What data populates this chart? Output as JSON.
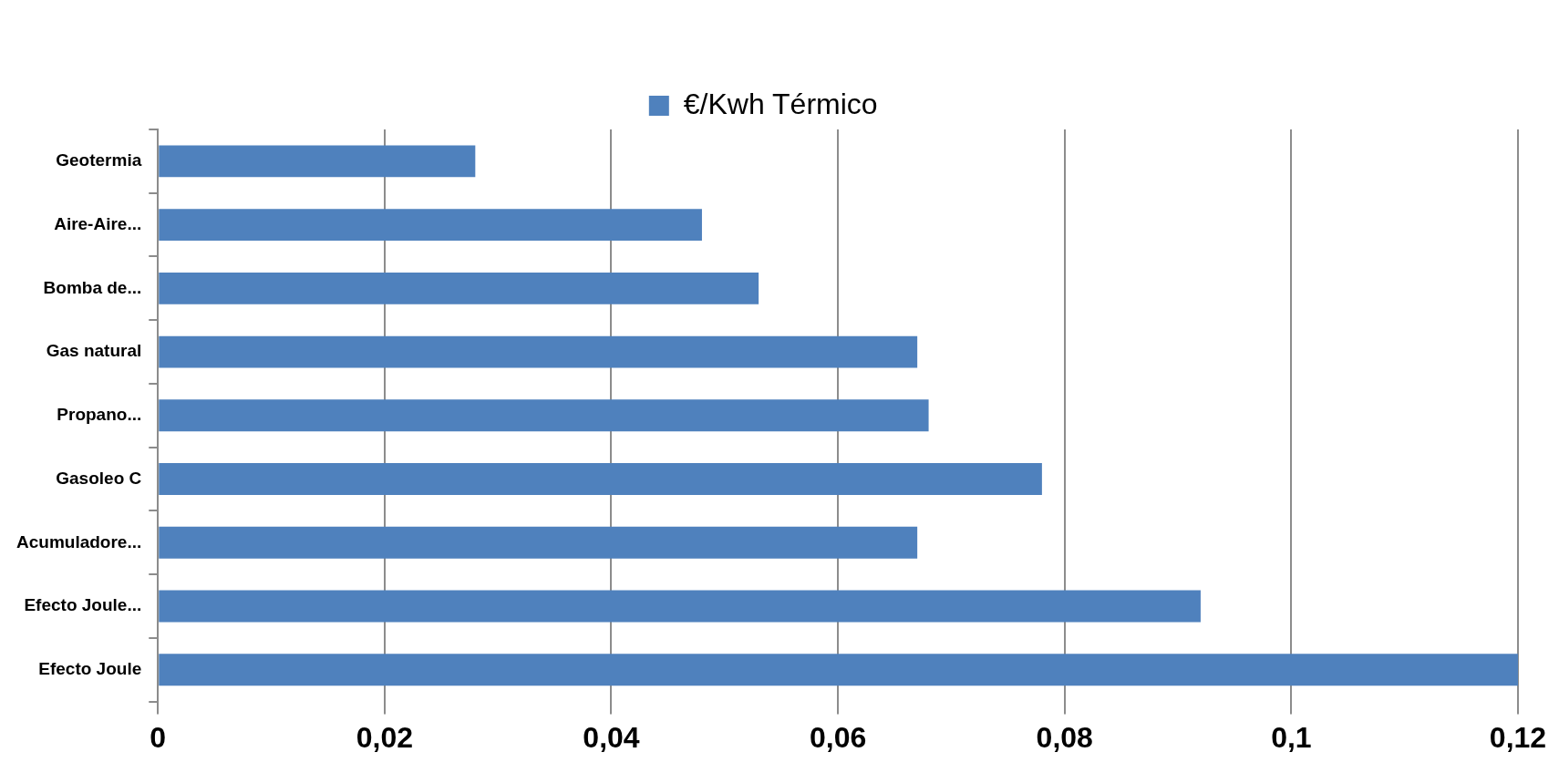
{
  "chart_data": {
    "type": "bar",
    "orientation": "horizontal",
    "categories": [
      "Geotermia",
      "Aire-Aire...",
      "Bomba de...",
      "Gas natural",
      "Propano...",
      "Gasoleo C",
      "Acumuladore...",
      "Efecto Joule...",
      "Efecto Joule"
    ],
    "series": [
      {
        "name": "€/Kwh Térmico",
        "color": "#4f81bd",
        "values": [
          0.028,
          0.048,
          0.053,
          0.067,
          0.068,
          0.078,
          0.067,
          0.092,
          0.12
        ]
      }
    ],
    "xlim": [
      0,
      0.12
    ],
    "xticks": [
      {
        "value": 0,
        "label": "0"
      },
      {
        "value": 0.02,
        "label": "0,02"
      },
      {
        "value": 0.04,
        "label": "0,04"
      },
      {
        "value": 0.06,
        "label": "0,06"
      },
      {
        "value": 0.08,
        "label": "0,08"
      },
      {
        "value": 0.1,
        "label": "0,1"
      },
      {
        "value": 0.12,
        "label": "0,12"
      }
    ],
    "grid": "x",
    "legend": "top"
  }
}
